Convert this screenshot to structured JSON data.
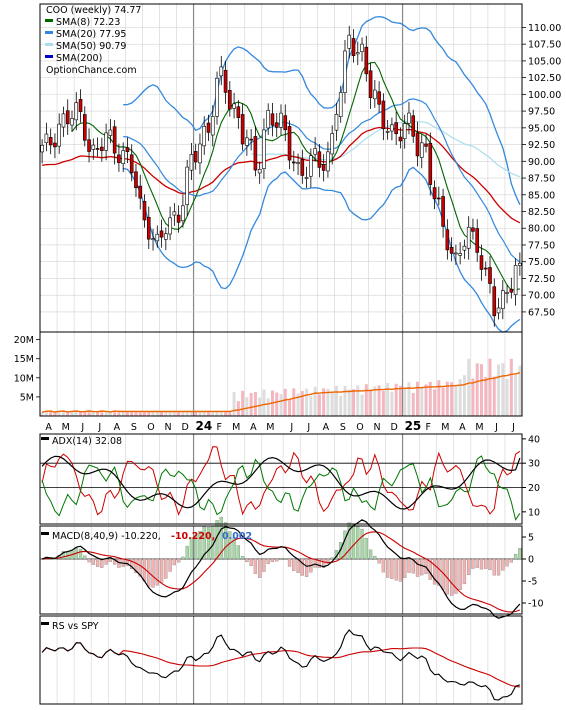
{
  "colors": {
    "background": "#ffffff",
    "grid": "#d3d3d3",
    "axis": "#000000",
    "up_candle": "#ffffff",
    "down_candle": "#cc0000",
    "gap_up_candle": "#eeee44",
    "gap_down_candle": "#cc66cc",
    "sma8": "#006600",
    "sma20": "#3388dd",
    "sma50": "#aaddee",
    "sma200": "#cc0000",
    "volume_up": "#dddddd",
    "volume_down": "#f4b7c0",
    "volume_avg": "#ee6600",
    "adx": "#000000",
    "plus_di": "#cc0000",
    "minus_di": "#007700",
    "macd": "#000000",
    "macd_signal": "#cc0000",
    "macd_hist_pos": "#a6d8a6",
    "macd_hist_neg": "#f3b3b3",
    "rs": "#000000",
    "rs_ma": "#cc0000",
    "macd_value_red": "#cc0000",
    "macd_value_blue": "#3366cc"
  },
  "chart_data": [
    {
      "type": "candlestick",
      "panel": "price",
      "legend": [
        {
          "text": "COO (weekly) 74.77",
          "swatch": ""
        },
        {
          "text": "SMA(8) 72.23",
          "swatch": "#006600"
        },
        {
          "text": "SMA(20) 77.95",
          "swatch": "#3388dd"
        },
        {
          "text": "SMA(50) 90.79",
          "swatch": "#aaddee"
        },
        {
          "text": "SMA(200)",
          "swatch": "#0000cc"
        },
        {
          "text": "OptionChance.com",
          "swatch": ""
        }
      ],
      "ylim": [
        64.5,
        113.5
      ],
      "y_ticks": [
        "67.50",
        "70.00",
        "72.50",
        "75.00",
        "77.50",
        "80.00",
        "82.50",
        "85.00",
        "87.50",
        "90.00",
        "92.50",
        "95.00",
        "97.50",
        "100.00",
        "102.50",
        "105.00",
        "107.50",
        "110.00"
      ],
      "close_anchors": [
        [
          0,
          91.5
        ],
        [
          5,
          96
        ],
        [
          9,
          97
        ],
        [
          12,
          91
        ],
        [
          16,
          93.5
        ],
        [
          20,
          90
        ],
        [
          24,
          82
        ],
        [
          27,
          77
        ],
        [
          29,
          80
        ],
        [
          32,
          83
        ],
        [
          36,
          91
        ],
        [
          38,
          94.5
        ],
        [
          42,
          102
        ],
        [
          45,
          98
        ],
        [
          48,
          93
        ],
        [
          50,
          88.5
        ],
        [
          53,
          97
        ],
        [
          56,
          95
        ],
        [
          58,
          92
        ],
        [
          61,
          88
        ],
        [
          64,
          90
        ],
        [
          67,
          91
        ],
        [
          70,
          100
        ],
        [
          72,
          109
        ],
        [
          75,
          106
        ],
        [
          77,
          100
        ],
        [
          80,
          97
        ],
        [
          83,
          93
        ],
        [
          86,
          96
        ],
        [
          89,
          92
        ],
        [
          92,
          85
        ],
        [
          95,
          79
        ],
        [
          97,
          74
        ],
        [
          100,
          80
        ],
        [
          102,
          78
        ],
        [
          104,
          72
        ],
        [
          106,
          68
        ],
        [
          108,
          70
        ],
        [
          110,
          72
        ],
        [
          112,
          74.77
        ]
      ],
      "weeks": 113,
      "sma_periods": [
        8,
        20,
        50
      ]
    },
    {
      "type": "bar",
      "panel": "volume",
      "y_ticks": [
        "5M",
        "10M",
        "15M",
        "20M"
      ],
      "ylim": [
        0,
        22
      ],
      "avg_line": "50-period average"
    },
    {
      "type": "line",
      "panel": "adx",
      "legend": "ADX(14) 32.08",
      "ylim": [
        5,
        42
      ],
      "y_ticks": [
        "10",
        "20",
        "30",
        "40"
      ],
      "reference_lines": [
        20,
        30
      ]
    },
    {
      "type": "line",
      "panel": "macd",
      "legend": "MACD(8,40,9) -10.220,",
      "values_red": "-10.220,",
      "values_blue": "0.002",
      "ylim": [
        -12.5,
        7.5
      ],
      "y_ticks": [
        "5",
        "0",
        "-5",
        "-10"
      ]
    },
    {
      "type": "line",
      "panel": "rs",
      "legend": "RS vs SPY"
    }
  ],
  "x_axis": {
    "labels": [
      "A",
      "M",
      "J",
      "J",
      "A",
      "S",
      "O",
      "N",
      "D",
      "24",
      "F",
      "M",
      "A",
      "M",
      "J",
      "J",
      "A",
      "S",
      "O",
      "N",
      "D",
      "25",
      "F",
      "M",
      "A",
      "M",
      "J",
      "J"
    ],
    "bold_labels": [
      "24",
      "25"
    ]
  }
}
